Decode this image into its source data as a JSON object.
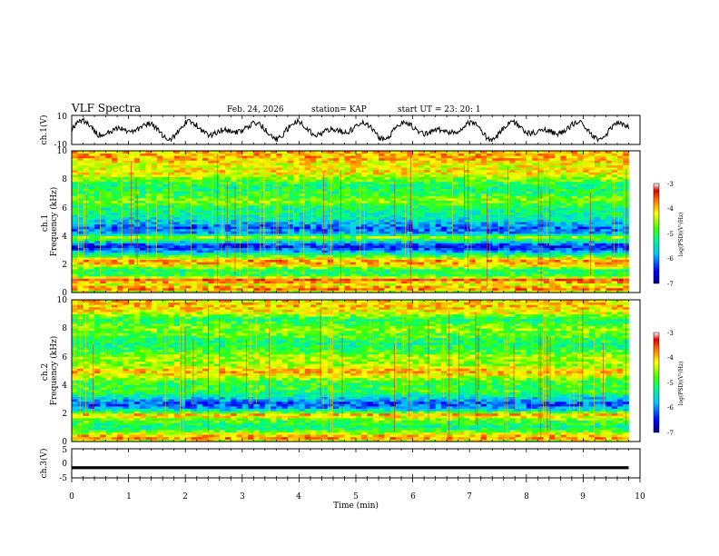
{
  "header": {
    "title": "VLF Spectra",
    "date": "Feb. 24, 2026",
    "station": "station= KAP",
    "start": "start  UT  =   23: 20: 1"
  },
  "chart_data": [
    {
      "type": "line",
      "name": "ch1-waveform",
      "ylabel": "ch.1(V)",
      "ylim": [
        -10,
        10
      ],
      "y_ticks": [
        "10",
        "-10"
      ],
      "xlim": [
        0,
        10
      ],
      "note": "noisy oscillating voltage trace spanning roughly -8 to +8 V over 0 to 9.8 min"
    },
    {
      "type": "heatmap",
      "name": "ch1-spectrogram",
      "ylabel": "ch.1\nFrequency (kHz)",
      "ylabel_lines": [
        "ch.1",
        "Frequency (kHz)"
      ],
      "ylim": [
        0,
        10
      ],
      "y_ticks": [
        "0",
        "2",
        "4",
        "6",
        "8",
        "10"
      ],
      "xlim": [
        0,
        10
      ],
      "data_end_min": 9.8,
      "colorbar": {
        "label": "log(PSD)(V²/Hz)",
        "range": [
          -7,
          -3
        ],
        "ticks": [
          "-3",
          "-4",
          "-5",
          "-6",
          "-7"
        ]
      },
      "band_profile": [
        [
          0.0,
          -4.6
        ],
        [
          0.3,
          -3.6
        ],
        [
          0.6,
          -4.3
        ],
        [
          0.9,
          -3.5
        ],
        [
          1.2,
          -4.9
        ],
        [
          1.6,
          -5.1
        ],
        [
          2.0,
          -4.0
        ],
        [
          2.3,
          -3.8
        ],
        [
          2.6,
          -4.9
        ],
        [
          3.0,
          -6.1
        ],
        [
          3.3,
          -6.5
        ],
        [
          3.6,
          -5.6
        ],
        [
          3.9,
          -4.5
        ],
        [
          4.2,
          -5.9
        ],
        [
          4.6,
          -6.2
        ],
        [
          5.0,
          -5.7
        ],
        [
          5.5,
          -5.3
        ],
        [
          6.0,
          -5.2
        ],
        [
          6.5,
          -4.6
        ],
        [
          7.0,
          -5.0
        ],
        [
          7.5,
          -5.2
        ],
        [
          8.0,
          -4.7
        ],
        [
          8.5,
          -4.1
        ],
        [
          9.0,
          -4.3
        ],
        [
          9.5,
          -3.9
        ],
        [
          10.0,
          -4.0
        ]
      ]
    },
    {
      "type": "heatmap",
      "name": "ch2-spectrogram",
      "ylabel": "ch.2\nFrequency (kHz)",
      "ylabel_lines": [
        "ch.2",
        "Frequency (kHz)"
      ],
      "ylim": [
        0,
        10
      ],
      "y_ticks": [
        "0",
        "2",
        "4",
        "6",
        "8",
        "10"
      ],
      "xlim": [
        0,
        10
      ],
      "data_end_min": 9.8,
      "colorbar": {
        "label": "log(PSD)(V²/Hz)",
        "range": [
          -7,
          -3
        ],
        "ticks": [
          "-3",
          "-4",
          "-5",
          "-6",
          "-7"
        ]
      },
      "band_profile": [
        [
          0.0,
          -4.5
        ],
        [
          0.3,
          -3.7
        ],
        [
          0.6,
          -4.4
        ],
        [
          1.0,
          -5.3
        ],
        [
          1.5,
          -4.8
        ],
        [
          1.9,
          -3.9
        ],
        [
          2.3,
          -5.8
        ],
        [
          2.7,
          -6.3
        ],
        [
          3.1,
          -5.6
        ],
        [
          3.6,
          -4.9
        ],
        [
          4.2,
          -5.0
        ],
        [
          4.7,
          -4.2
        ],
        [
          5.0,
          -3.9
        ],
        [
          5.4,
          -4.6
        ],
        [
          6.0,
          -4.5
        ],
        [
          6.5,
          -5.0
        ],
        [
          7.0,
          -5.2
        ],
        [
          7.5,
          -4.8
        ],
        [
          8.0,
          -4.6
        ],
        [
          8.6,
          -5.1
        ],
        [
          9.2,
          -4.2
        ],
        [
          9.6,
          -4.0
        ],
        [
          10.0,
          -4.1
        ]
      ]
    },
    {
      "type": "line",
      "name": "ch3-waveform",
      "ylabel": "ch.3(V)",
      "ylim": [
        -5,
        5
      ],
      "y_ticks": [
        "5",
        "0",
        "-5"
      ],
      "xlim": [
        0,
        10
      ],
      "x_ticks": [
        "0",
        "1",
        "2",
        "3",
        "4",
        "5",
        "6",
        "7",
        "8",
        "9",
        "10"
      ],
      "xlabel": "Time (min)",
      "note": "thick nearly constant trace at about -1.5 V from 0 to 9.8 min"
    }
  ]
}
